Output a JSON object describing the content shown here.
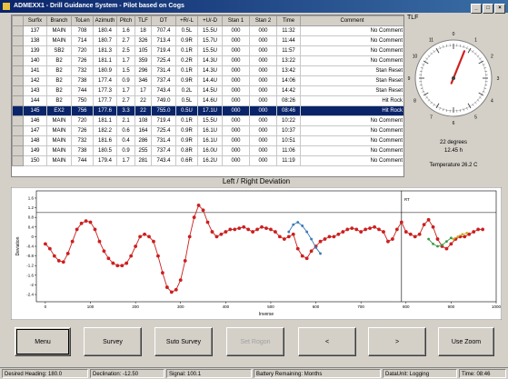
{
  "window": {
    "title": "ADMEXX1 - Drill Guidance System - Pilot based on Cogs"
  },
  "grid": {
    "headers": [
      "Surfix",
      "Branch",
      "ToLen",
      "Azimuth",
      "Pitch",
      "TLF",
      "DT",
      "+R/-L",
      "+U/-D",
      "Stan 1",
      "Stan 2",
      "Time",
      "Comment"
    ],
    "rows": [
      [
        "137",
        "MAIN",
        "708",
        "180.4",
        "1.6",
        "18",
        "707.4",
        "0.5L",
        "15.5U",
        "000",
        "000",
        "11:32",
        "No Comment"
      ],
      [
        "138",
        "MAIN",
        "714",
        "180.7",
        "2.7",
        "326",
        "713.4",
        "0.9R",
        "15.7U",
        "000",
        "000",
        "11:44",
        "No Comment"
      ],
      [
        "139",
        "SB2",
        "720",
        "181.3",
        "2.5",
        "105",
        "719.4",
        "0.1R",
        "15.5U",
        "000",
        "000",
        "11:57",
        "No Comment"
      ],
      [
        "140",
        "B2",
        "726",
        "181.1",
        "1.7",
        "359",
        "725.4",
        "0.2R",
        "14.3U",
        "000",
        "000",
        "13:22",
        "No Comment"
      ],
      [
        "141",
        "B2",
        "732",
        "180.9",
        "1.5",
        "296",
        "731.4",
        "0.1R",
        "14.3U",
        "000",
        "000",
        "13:42",
        "Stan Reset"
      ],
      [
        "142",
        "B2",
        "738",
        "177.4",
        "0.9",
        "346",
        "737.4",
        "0.9R",
        "14.4U",
        "000",
        "000",
        "14:06",
        "Stan Reset"
      ],
      [
        "143",
        "B2",
        "744",
        "177.3",
        "1.7",
        "17",
        "743.4",
        "0.2L",
        "14.5U",
        "000",
        "000",
        "14:42",
        "Stan Reset"
      ],
      [
        "144",
        "B2",
        "750",
        "177.7",
        "2.7",
        "22",
        "749.0",
        "0.5L",
        "14.6U",
        "000",
        "000",
        "08:26",
        "Hit Rock"
      ],
      [
        "145",
        "EX2",
        "756",
        "177.6",
        "3.3",
        "22",
        "755.0",
        "0.5U",
        "17.1U",
        "000",
        "000",
        "08:46",
        "Hit Rock"
      ],
      [
        "146",
        "MAIN",
        "720",
        "181.1",
        "2.1",
        "108",
        "719.4",
        "0.1R",
        "15.5U",
        "000",
        "000",
        "10:22",
        "No Comment"
      ],
      [
        "147",
        "MAIN",
        "726",
        "182.2",
        "0.6",
        "164",
        "725.4",
        "0.9R",
        "16.1U",
        "000",
        "000",
        "10:37",
        "No Comment"
      ],
      [
        "148",
        "MAIN",
        "732",
        "181.6",
        "0.4",
        "286",
        "731.4",
        "0.9R",
        "16.1U",
        "000",
        "000",
        "10:51",
        "No Comment"
      ],
      [
        "149",
        "MAIN",
        "738",
        "180.5",
        "0.9",
        "255",
        "737.4",
        "0.8R",
        "16.0U",
        "000",
        "000",
        "11:06",
        "No Comment"
      ],
      [
        "150",
        "MAIN",
        "744",
        "179.4",
        "1.7",
        "281",
        "743.4",
        "0.6R",
        "16.2U",
        "000",
        "000",
        "11:19",
        "No Comment"
      ]
    ],
    "selected_index": 8
  },
  "tlf": {
    "label": "TLF",
    "degrees_text": "22 degrees",
    "percent_text": "12.45 h",
    "temperature_text": "Temperature   26.2 C",
    "needle_angle": 22,
    "dial_ticks": [
      "0",
      "1",
      "2",
      "3",
      "4",
      "5",
      "6",
      "7",
      "8",
      "9",
      "10",
      "11"
    ]
  },
  "chart_data": {
    "type": "line",
    "title": "Left / Right Deviation",
    "xlabel": "Inverse",
    "ylabel": "Deviation",
    "xlim": [
      -20,
      1000
    ],
    "ylim": [
      -2.7,
      1.9
    ],
    "xticks": [
      0,
      100,
      200,
      300,
      400,
      500,
      600,
      700,
      800,
      900,
      1000
    ],
    "yticks": [
      1.6,
      1.2,
      0.8,
      0.4,
      0.0,
      -0.4,
      -0.8,
      -1.2,
      -1.6,
      -2.0,
      -2.4
    ],
    "grid": false,
    "reference_line": {
      "y": 1.0,
      "x_start": 790
    },
    "vertical_line": {
      "x": 790,
      "label": "RT"
    },
    "series": [
      {
        "color": "#cc1f1f",
        "x": [
          0,
          10,
          20,
          30,
          40,
          50,
          60,
          70,
          80,
          90,
          100,
          110,
          120,
          130,
          140,
          150,
          160,
          170,
          180,
          190,
          200,
          210,
          220,
          230,
          240,
          250,
          260,
          270,
          280,
          290,
          300,
          310,
          320,
          330,
          340,
          350,
          360,
          370,
          380,
          390,
          400,
          410,
          420,
          430,
          440,
          450,
          460,
          470,
          480,
          490,
          500,
          510,
          520,
          530,
          540,
          550,
          560,
          570,
          580,
          590,
          600,
          610,
          620,
          630,
          640,
          650,
          660,
          670,
          680,
          690,
          700,
          710,
          720,
          730,
          740,
          750,
          760,
          770,
          780,
          790,
          800,
          810,
          820,
          830,
          840,
          850,
          860,
          870,
          880,
          890,
          900,
          910,
          920,
          930,
          940,
          950,
          960,
          970
        ],
        "y": [
          -0.3,
          -0.5,
          -0.8,
          -1.0,
          -1.05,
          -0.7,
          -0.2,
          0.3,
          0.55,
          0.65,
          0.6,
          0.3,
          -0.2,
          -0.6,
          -0.9,
          -1.1,
          -1.2,
          -1.2,
          -1.1,
          -0.8,
          -0.4,
          0.0,
          0.1,
          0.0,
          -0.2,
          -0.8,
          -1.5,
          -2.1,
          -2.3,
          -2.2,
          -1.8,
          -1.0,
          0.0,
          0.8,
          1.3,
          1.1,
          0.6,
          0.2,
          0.0,
          0.1,
          0.2,
          0.3,
          0.3,
          0.35,
          0.4,
          0.3,
          0.2,
          0.3,
          0.4,
          0.35,
          0.3,
          0.2,
          0.0,
          -0.1,
          0.0,
          0.1,
          -0.5,
          -0.8,
          -0.9,
          -0.6,
          -0.4,
          -0.2,
          -0.1,
          0.0,
          0.0,
          0.1,
          0.2,
          0.3,
          0.35,
          0.3,
          0.2,
          0.3,
          0.35,
          0.4,
          0.3,
          0.2,
          -0.2,
          -0.1,
          0.3,
          0.6,
          0.2,
          0.1,
          0.0,
          0.1,
          0.5,
          0.7,
          0.4,
          -0.1,
          -0.4,
          -0.5,
          -0.3,
          -0.1,
          0.0,
          0.0,
          0.1,
          0.2,
          0.3,
          0.3
        ]
      },
      {
        "color": "#3a78b8",
        "x": [
          540,
          550,
          560,
          570,
          580,
          590,
          600,
          610
        ],
        "y": [
          0.2,
          0.5,
          0.6,
          0.45,
          0.2,
          -0.1,
          -0.45,
          -0.7
        ]
      },
      {
        "color": "#3a9a4a",
        "x": [
          850,
          860,
          870,
          880,
          890,
          900
        ],
        "y": [
          -0.1,
          -0.3,
          -0.4,
          -0.35,
          -0.2,
          -0.05
        ]
      },
      {
        "color": "#c8b030",
        "x": [
          905,
          915,
          925,
          935
        ],
        "y": [
          -0.1,
          0.0,
          0.1,
          0.15
        ]
      }
    ]
  },
  "buttons": [
    {
      "label": "Menu",
      "disabled": false,
      "focused": true
    },
    {
      "label": "Survey",
      "disabled": false,
      "focused": false
    },
    {
      "label": "Suto Survey",
      "disabled": false,
      "focused": false
    },
    {
      "label": "Set Rogon",
      "disabled": true,
      "focused": false
    },
    {
      "label": "<",
      "disabled": false,
      "focused": false
    },
    {
      "label": ">",
      "disabled": false,
      "focused": false
    },
    {
      "label": "Use Zoom",
      "disabled": false,
      "focused": false
    }
  ],
  "status": {
    "heading": "Desired Heading: 180.0",
    "declination": "Declination: -12.50",
    "signal": "Signal: 100.1",
    "battery": "Battery Remaining: Months",
    "data_unit": "DataUnit: Logging",
    "time": "Time: 08:46"
  }
}
